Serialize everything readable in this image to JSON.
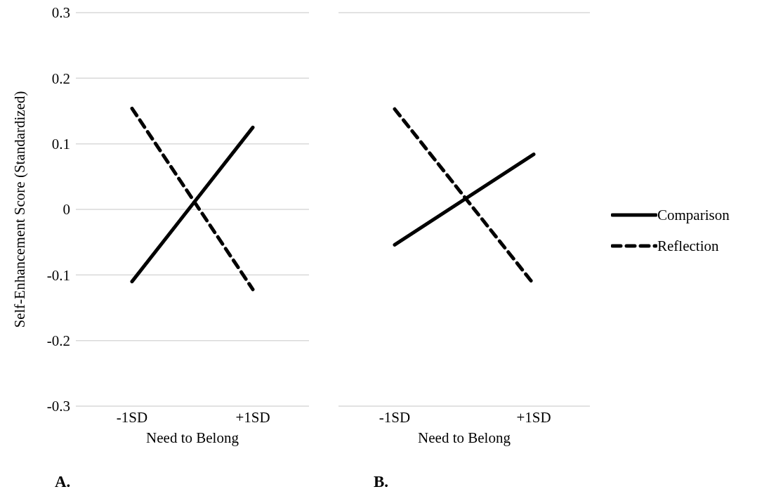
{
  "chart_data": [
    {
      "type": "line",
      "ylabel": "Self-Enhancement Score (Standardized)",
      "xlabel": "Need to Belong",
      "categories": [
        "-1SD",
        "+1SD"
      ],
      "ylim": [
        -0.3,
        0.3
      ],
      "yticks": [
        -0.3,
        -0.2,
        -0.1,
        0,
        0.1,
        0.2,
        0.3
      ],
      "grid": "y",
      "legend": false,
      "marker": "none",
      "annotations": [
        "A."
      ],
      "series": [
        {
          "color": "#000000",
          "line_style": "solid",
          "values": [
            -0.11,
            0.125
          ]
        },
        {
          "color": "#000000",
          "line_style": "dashed",
          "values": [
            0.154,
            -0.122
          ]
        }
      ]
    },
    {
      "type": "line",
      "xlabel": "Need to Belong",
      "categories": [
        "-1SD",
        "+1SD"
      ],
      "ylim": [
        -0.3,
        0.3
      ],
      "yticks": [
        -0.3,
        -0.2,
        -0.1,
        0,
        0.1,
        0.2,
        0.3
      ],
      "grid": "y",
      "legend": "right",
      "tick_labels": "x",
      "marker": "none",
      "annotations": [
        "B."
      ],
      "series": [
        {
          "name": "Comparison",
          "color": "#000000",
          "line_style": "solid",
          "values": [
            -0.054,
            0.084
          ]
        },
        {
          "name": "Reflection",
          "color": "#000000",
          "line_style": "dashed",
          "values": [
            0.153,
            -0.114
          ]
        }
      ]
    }
  ]
}
